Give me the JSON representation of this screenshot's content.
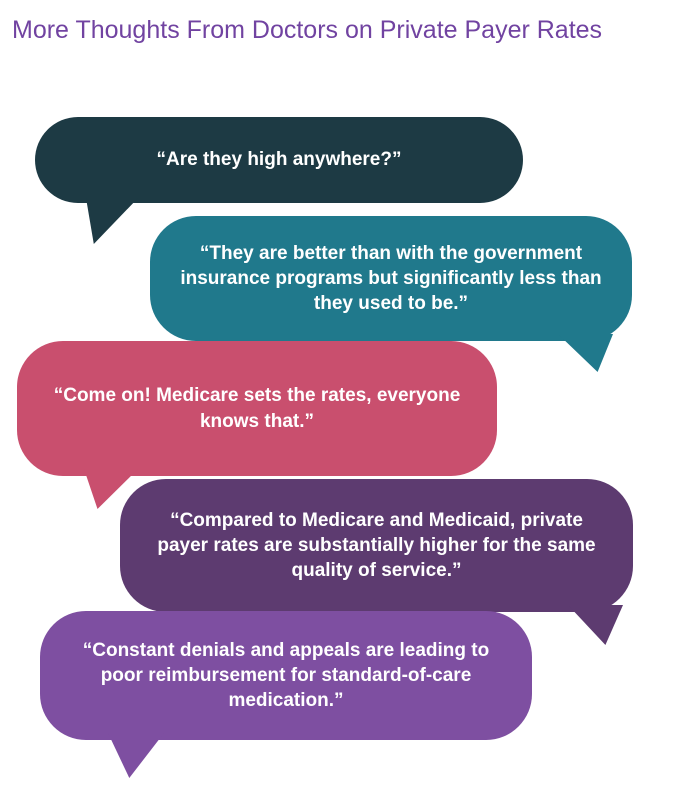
{
  "title": "More Thoughts From Doctors on Private Payer Rates",
  "colors": {
    "title": "#7143a1",
    "bubble_text": "#ffffff",
    "background": "#ffffff"
  },
  "bubbles": [
    {
      "quote": "“Are they high anywhere?”",
      "color": "#1d3a44",
      "tail_side": "bottom-left"
    },
    {
      "quote": "“They are better than with the government insurance programs but significantly less than they used to be.”",
      "color": "#20798c",
      "tail_side": "bottom-right"
    },
    {
      "quote": "“Come on! Medicare sets the rates, everyone knows that.”",
      "color": "#c94f6e",
      "tail_side": "bottom-left"
    },
    {
      "quote": "“Compared to Medicare and Medicaid, private payer rates are substantially higher for the same quality of service.”",
      "color": "#5d3b70",
      "tail_side": "bottom-right"
    },
    {
      "quote": "“Constant denials and appeals are leading to poor reimbursement for standard-of-care medication.”",
      "color": "#7e4fa1",
      "tail_side": "bottom-left"
    }
  ]
}
